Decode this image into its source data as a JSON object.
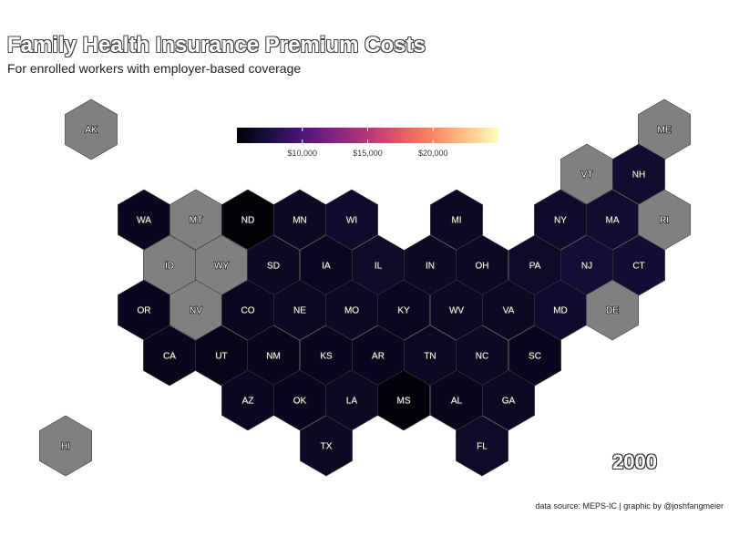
{
  "header": {
    "title": "Family Health Insurance Premium Costs",
    "subtitle": "For enrolled workers with employer-based coverage"
  },
  "year_label": "2000",
  "caption": "data source: MEPS-IC | graphic by @joshfangmeier",
  "legend": {
    "scale": "magma",
    "range": [
      5000,
      25000
    ],
    "ticks": [
      {
        "value": 10000,
        "label": "$10,000"
      },
      {
        "value": 15000,
        "label": "$15,000"
      },
      {
        "value": 20000,
        "label": "$20,000"
      }
    ]
  },
  "colors": {
    "no_data": "#808080",
    "hex_border": "#3a3a3a",
    "gradient": [
      "#000004",
      "#1c1044",
      "#4f127b",
      "#812581",
      "#b5367a",
      "#e55964",
      "#fb8761",
      "#fec287",
      "#fcfdbf"
    ]
  },
  "chart_data": {
    "type": "heatmap",
    "title": "Family Health Insurance Premium Costs",
    "subtitle": "For enrolled workers with employer-based coverage",
    "year": "2000",
    "states": [
      {
        "code": "AK",
        "premium": null
      },
      {
        "code": "ME",
        "premium": null
      },
      {
        "code": "VT",
        "premium": null
      },
      {
        "code": "NH",
        "premium": 6700
      },
      {
        "code": "WA",
        "premium": 6000
      },
      {
        "code": "MT",
        "premium": null
      },
      {
        "code": "ND",
        "premium": 5100
      },
      {
        "code": "MN",
        "premium": 6200
      },
      {
        "code": "WI",
        "premium": 6600
      },
      {
        "code": "MI",
        "premium": 6300
      },
      {
        "code": "NY",
        "premium": 6600
      },
      {
        "code": "MA",
        "premium": 6700
      },
      {
        "code": "RI",
        "premium": null
      },
      {
        "code": "ID",
        "premium": null
      },
      {
        "code": "WY",
        "premium": null
      },
      {
        "code": "SD",
        "premium": 6200
      },
      {
        "code": "IA",
        "premium": 6100
      },
      {
        "code": "IL",
        "premium": 6500
      },
      {
        "code": "IN",
        "premium": 6200
      },
      {
        "code": "OH",
        "premium": 6300
      },
      {
        "code": "PA",
        "premium": 6400
      },
      {
        "code": "NJ",
        "premium": 7000
      },
      {
        "code": "CT",
        "premium": 6800
      },
      {
        "code": "OR",
        "premium": 6000
      },
      {
        "code": "NV",
        "premium": null
      },
      {
        "code": "CO",
        "premium": 6100
      },
      {
        "code": "NE",
        "premium": 6200
      },
      {
        "code": "MO",
        "premium": 6300
      },
      {
        "code": "KY",
        "premium": 6100
      },
      {
        "code": "WV",
        "premium": 6200
      },
      {
        "code": "VA",
        "premium": 6200
      },
      {
        "code": "MD",
        "premium": 6600
      },
      {
        "code": "DE",
        "premium": null
      },
      {
        "code": "CA",
        "premium": 5900
      },
      {
        "code": "UT",
        "premium": 5800
      },
      {
        "code": "NM",
        "premium": 5900
      },
      {
        "code": "KS",
        "premium": 6000
      },
      {
        "code": "AR",
        "premium": 6000
      },
      {
        "code": "TN",
        "premium": 6200
      },
      {
        "code": "NC",
        "premium": 6300
      },
      {
        "code": "SC",
        "premium": 6000
      },
      {
        "code": "AZ",
        "premium": 6100
      },
      {
        "code": "OK",
        "premium": 6000
      },
      {
        "code": "LA",
        "premium": 6200
      },
      {
        "code": "MS",
        "premium": 5200
      },
      {
        "code": "AL",
        "premium": 5900
      },
      {
        "code": "GA",
        "premium": 6200
      },
      {
        "code": "HI",
        "premium": null
      },
      {
        "code": "TX",
        "premium": 6300
      },
      {
        "code": "FL",
        "premium": 6400
      }
    ]
  }
}
